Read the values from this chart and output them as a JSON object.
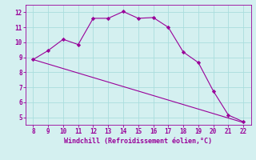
{
  "x": [
    8,
    9,
    10,
    11,
    12,
    13,
    14,
    15,
    16,
    17,
    18,
    19,
    20,
    21,
    22
  ],
  "y_line1": [
    8.85,
    9.45,
    10.2,
    9.85,
    11.6,
    11.6,
    12.05,
    11.6,
    11.65,
    11.0,
    9.35,
    8.65,
    6.75,
    5.15,
    4.7
  ],
  "y_line2": [
    8.85,
    8.55,
    8.25,
    7.95,
    7.65,
    7.35,
    7.05,
    6.75,
    6.45,
    6.15,
    5.85,
    5.55,
    5.25,
    4.95,
    4.65
  ],
  "line_color": "#990099",
  "marker": "D",
  "marker_size": 2.2,
  "xlabel": "Windchill (Refroidissement éolien,°C)",
  "xlabel_color": "#990099",
  "background_color": "#d4f0f0",
  "grid_color": "#aadddd",
  "tick_color": "#990099",
  "xlim": [
    7.5,
    22.5
  ],
  "ylim": [
    4.5,
    12.5
  ],
  "xticks": [
    8,
    9,
    10,
    11,
    12,
    13,
    14,
    15,
    16,
    17,
    18,
    19,
    20,
    21,
    22
  ],
  "yticks": [
    5,
    6,
    7,
    8,
    9,
    10,
    11,
    12
  ],
  "tick_fontsize": 5.5,
  "xlabel_fontsize": 6.0
}
